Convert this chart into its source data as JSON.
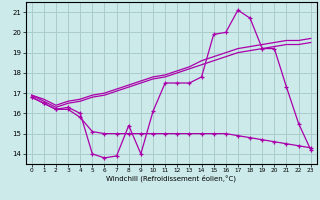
{
  "xlabel": "Windchill (Refroidissement éolien,°C)",
  "background_color": "#cceaea",
  "line_color": "#aa00aa",
  "grid_color": "#aacccc",
  "hours": [
    0,
    1,
    2,
    3,
    4,
    5,
    6,
    7,
    8,
    9,
    10,
    11,
    12,
    13,
    14,
    15,
    16,
    17,
    18,
    19,
    20,
    21,
    22,
    23
  ],
  "temp": [
    16.8,
    16.5,
    16.2,
    16.3,
    16.0,
    14.0,
    13.8,
    13.9,
    15.4,
    14.0,
    16.1,
    17.5,
    17.5,
    17.5,
    17.8,
    19.9,
    20.0,
    21.1,
    20.7,
    19.2,
    19.2,
    17.3,
    15.5,
    14.2
  ],
  "line2": [
    16.8,
    16.5,
    16.2,
    16.2,
    15.8,
    15.1,
    15.0,
    15.0,
    15.0,
    15.0,
    15.0,
    15.0,
    15.0,
    15.0,
    15.0,
    15.0,
    15.0,
    14.9,
    14.8,
    14.7,
    14.6,
    14.5,
    14.4,
    14.3
  ],
  "line3": [
    16.9,
    16.6,
    16.3,
    16.5,
    16.6,
    16.8,
    16.9,
    17.1,
    17.3,
    17.5,
    17.7,
    17.8,
    18.0,
    18.2,
    18.4,
    18.6,
    18.8,
    19.0,
    19.1,
    19.2,
    19.3,
    19.4,
    19.4,
    19.5
  ],
  "line4": [
    16.9,
    16.7,
    16.4,
    16.6,
    16.7,
    16.9,
    17.0,
    17.2,
    17.4,
    17.6,
    17.8,
    17.9,
    18.1,
    18.3,
    18.6,
    18.8,
    19.0,
    19.2,
    19.3,
    19.4,
    19.5,
    19.6,
    19.6,
    19.7
  ],
  "ylim": [
    13.5,
    21.5
  ],
  "yticks": [
    14,
    15,
    16,
    17,
    18,
    19,
    20,
    21
  ],
  "xlim": [
    -0.5,
    23.5
  ]
}
